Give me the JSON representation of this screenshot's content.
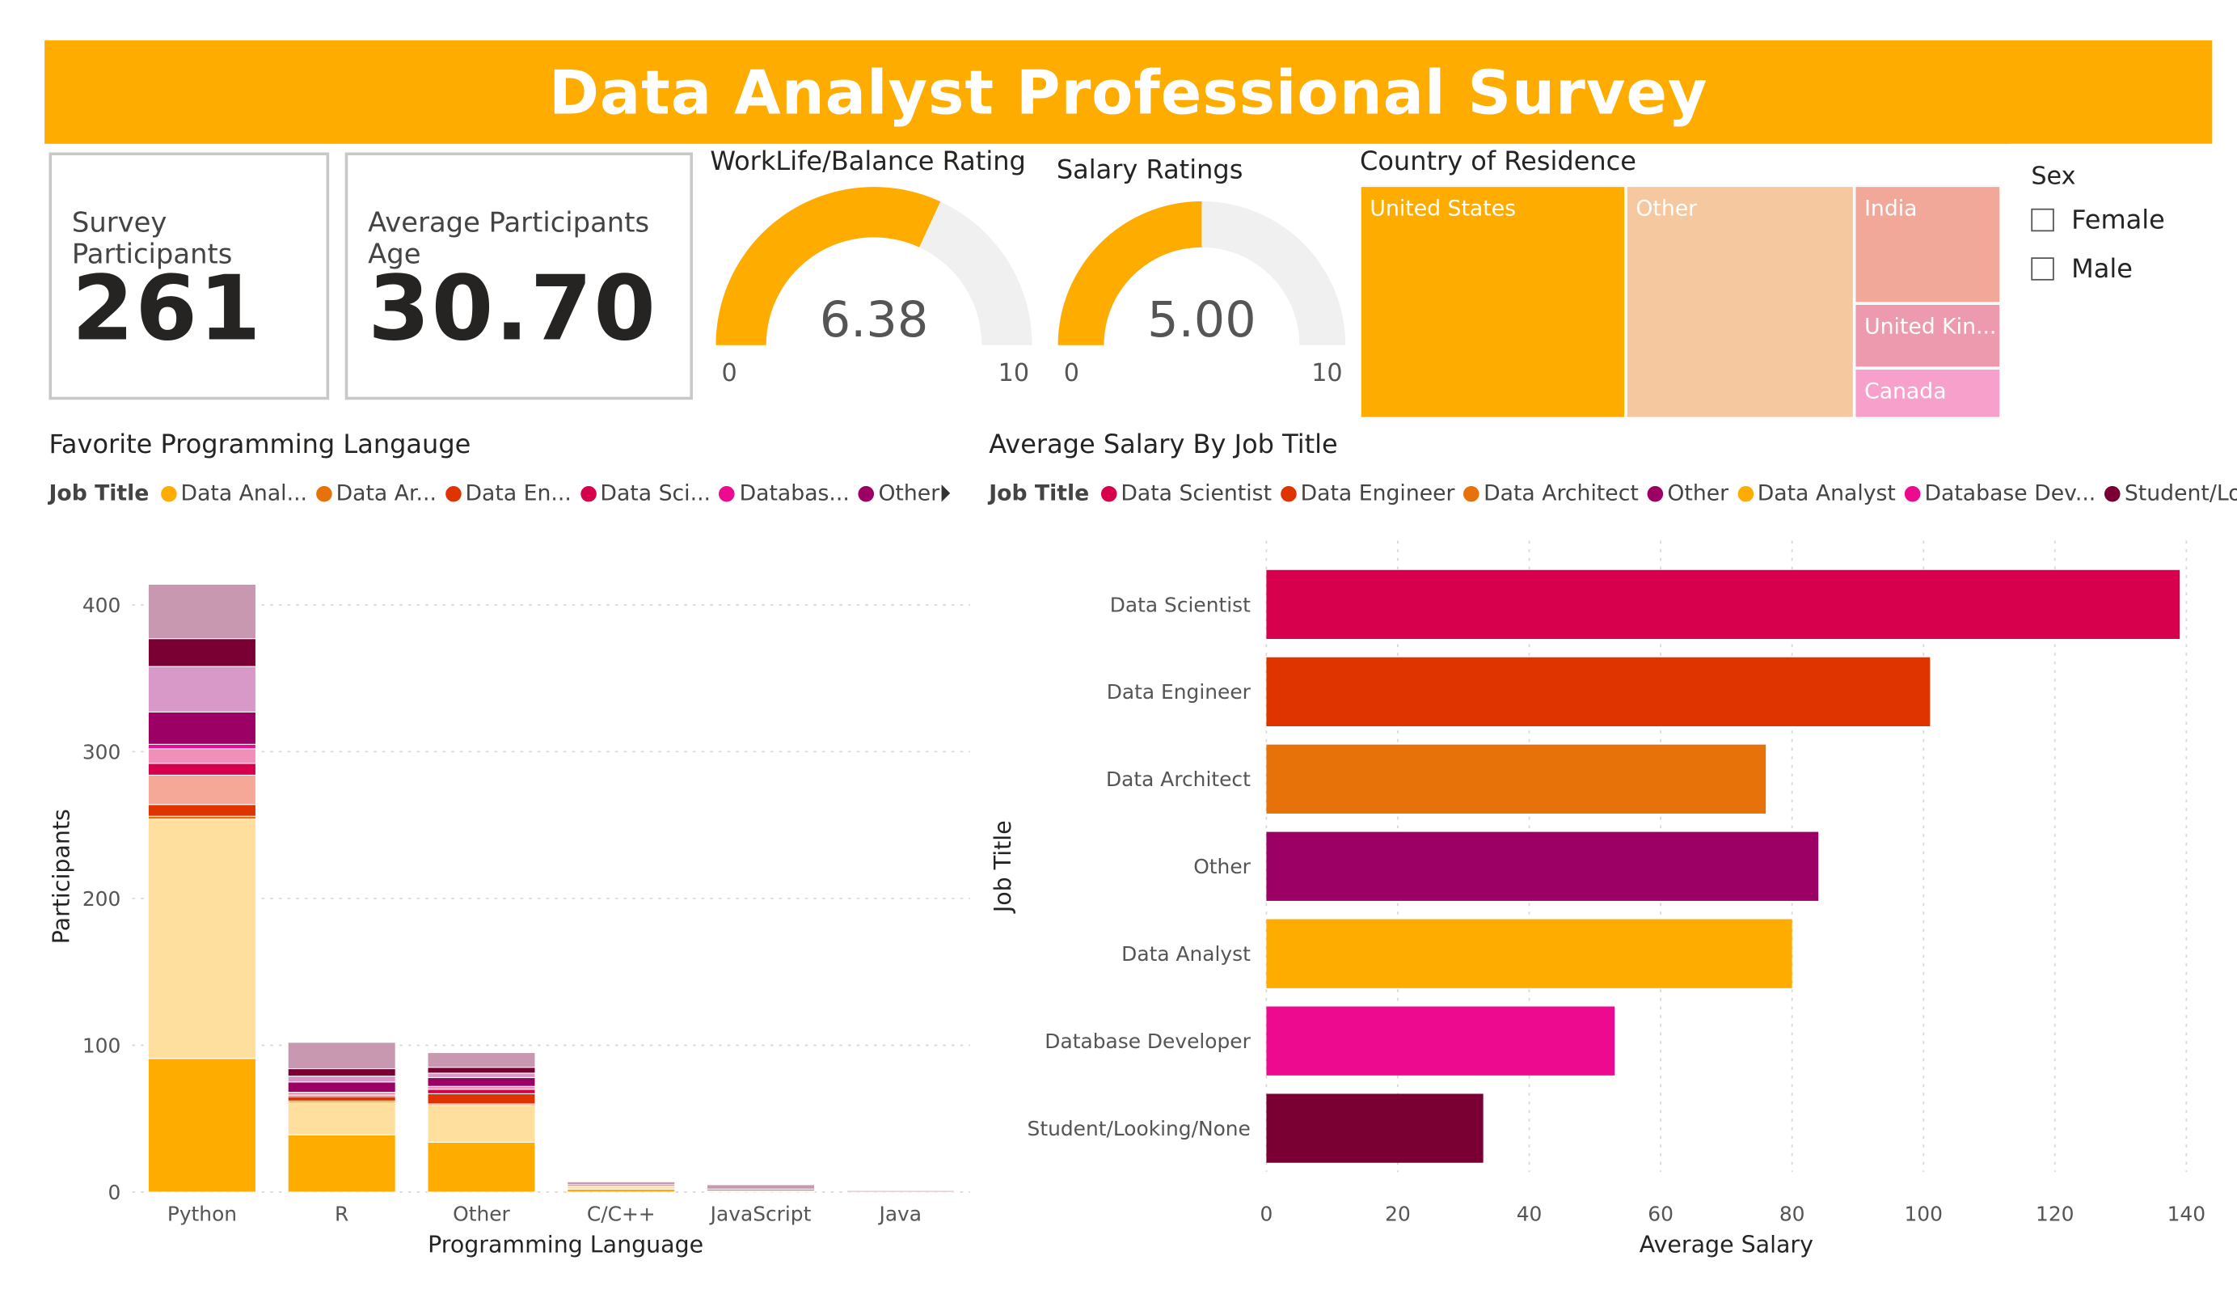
{
  "header": {
    "title": "Data Analyst Professional Survey"
  },
  "kpis": {
    "participants": {
      "label": "Survey Participants",
      "value": "261"
    },
    "age": {
      "label": "Average Participants Age",
      "value": "30.70"
    }
  },
  "gauges": [
    {
      "title": "WorkLife/Balance Rating",
      "value": 6.38,
      "value_text": "6.38",
      "min": 0,
      "max": 10,
      "min_text": "0",
      "max_text": "10",
      "fill": "#FFAC00",
      "track": "#F0F0F0"
    },
    {
      "title": "Salary Ratings",
      "value": 5.0,
      "value_text": "5.00",
      "min": 0,
      "max": 10,
      "min_text": "0",
      "max_text": "10",
      "fill": "#FFAC00",
      "track": "#F0F0F0"
    }
  ],
  "treemap": {
    "title": "Country of Residence",
    "cells": [
      {
        "label": "United States",
        "color": "#FFAC00"
      },
      {
        "label": "Other",
        "color": "#F5C8A0"
      },
      {
        "label": "India",
        "color": "#F2A898"
      },
      {
        "label": "United Kin...",
        "color": "#EE9AAE"
      },
      {
        "label": "Canada",
        "color": "#F7A0CC"
      }
    ]
  },
  "slicer": {
    "title": "Sex",
    "options": [
      "Female",
      "Male"
    ]
  },
  "colors": {
    "data_scientist": "#D6004C",
    "data_engineer": "#E03400",
    "data_architect": "#E8720A",
    "other": "#9C0065",
    "data_analyst": "#FFAC00",
    "database_developer": "#EE0A8E",
    "student": "#7A0034"
  },
  "chart_data": [
    {
      "type": "bar",
      "orientation": "vertical",
      "stacked": true,
      "title": "Favorite Programming Langauge",
      "xlabel": "Programming Language",
      "ylabel": "Participants",
      "ylim": [
        0,
        430
      ],
      "yticks": [
        0,
        100,
        200,
        300,
        400
      ],
      "grid": true,
      "legend": {
        "title": "Job Title",
        "placement": "top",
        "items": [
          {
            "label": "Data Anal...",
            "color": "#FFAC00"
          },
          {
            "label": "Data Ar...",
            "color": "#E8720A"
          },
          {
            "label": "Data En...",
            "color": "#E03400"
          },
          {
            "label": "Data Sci...",
            "color": "#D6004C"
          },
          {
            "label": "Databas...",
            "color": "#EE0A8E"
          },
          {
            "label": "Other",
            "color": "#9C0065"
          }
        ]
      },
      "categories": [
        "Python",
        "R",
        "Other",
        "C/C++",
        "JavaScript",
        "Java"
      ],
      "segment_colors": [
        "#FFAC00",
        "#FFDF9E",
        "#E8720A",
        "#E03400",
        "#F5A898",
        "#D6004C",
        "#F090B8",
        "#EE0A8E",
        "#9C0065",
        "#D898C8",
        "#7A0034",
        "#C898B0"
      ],
      "stacks": [
        [
          91,
          163,
          2,
          8,
          20,
          8,
          10,
          3,
          22,
          31,
          19,
          37
        ],
        [
          39,
          22,
          1,
          3,
          0,
          1,
          2,
          0,
          7,
          4,
          5,
          18
        ],
        [
          34,
          25,
          1,
          7,
          0,
          3,
          2,
          0,
          6,
          3,
          4,
          10
        ],
        [
          2,
          2,
          0,
          1,
          0,
          0,
          0,
          0,
          0,
          0,
          0,
          2
        ],
        [
          0,
          1,
          0,
          0,
          0,
          1,
          0,
          0,
          0,
          0,
          0,
          3
        ],
        [
          0,
          0,
          0,
          0,
          0,
          0,
          0,
          0,
          0,
          0,
          0,
          1
        ]
      ]
    },
    {
      "type": "bar",
      "orientation": "horizontal",
      "title": "Average Salary By Job Title",
      "xlabel": "Average Salary",
      "ylabel": "Job Title",
      "xlim": [
        0,
        140
      ],
      "xticks": [
        0,
        20,
        40,
        60,
        80,
        100,
        120,
        140
      ],
      "grid": true,
      "legend": {
        "title": "Job Title",
        "placement": "top",
        "items": [
          {
            "label": "Data Scientist",
            "color": "#D6004C"
          },
          {
            "label": "Data Engineer",
            "color": "#E03400"
          },
          {
            "label": "Data Architect",
            "color": "#E8720A"
          },
          {
            "label": "Other",
            "color": "#9C0065"
          },
          {
            "label": "Data Analyst",
            "color": "#FFAC00"
          },
          {
            "label": "Database Dev...",
            "color": "#EE0A8E"
          },
          {
            "label": "Student/Lo...",
            "color": "#7A0034"
          }
        ]
      },
      "categories": [
        "Data Scientist",
        "Data Engineer",
        "Data Architect",
        "Other",
        "Data Analyst",
        "Database Developer",
        "Student/Looking/None"
      ],
      "values": [
        139,
        101,
        76,
        84,
        80,
        53,
        33
      ],
      "bar_colors": [
        "#D6004C",
        "#E03400",
        "#E8720A",
        "#9C0065",
        "#FFAC00",
        "#EE0A8E",
        "#7A0034"
      ]
    }
  ]
}
